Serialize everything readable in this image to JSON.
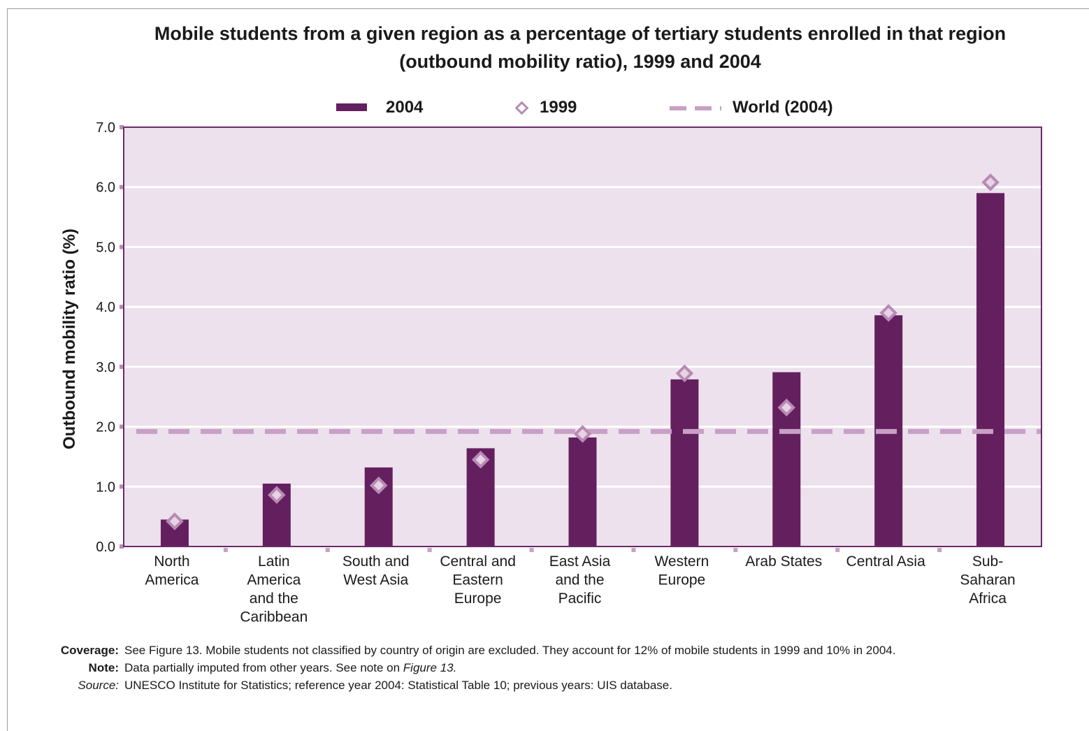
{
  "title_line1": "Mobile students from a given region as a percentage of tertiary students enrolled in that region",
  "title_line2": "(outbound mobility ratio), 1999 and 2004",
  "chart_data": {
    "type": "bar",
    "title": "Mobile students from a given region as a percentage of tertiary students enrolled in that region (outbound mobility ratio), 1999 and 2004",
    "xlabel": "",
    "ylabel": "Outbound mobility ratio (%)",
    "ylim": [
      0,
      7
    ],
    "yticks": [
      "0.0",
      "1.0",
      "2.0",
      "3.0",
      "4.0",
      "5.0",
      "6.0",
      "7.0"
    ],
    "categories": [
      [
        "North",
        "America"
      ],
      [
        "Latin",
        "America",
        "and the",
        "Caribbean"
      ],
      [
        "South and",
        "West Asia"
      ],
      [
        "Central and",
        "Eastern",
        "Europe"
      ],
      [
        "East Asia",
        "and the",
        "Pacific"
      ],
      [
        "Western",
        "Europe"
      ],
      [
        "Arab States"
      ],
      [
        "Central Asia"
      ],
      [
        "Sub-",
        "Saharan",
        "Africa"
      ]
    ],
    "series": [
      {
        "name": "2004",
        "kind": "bar",
        "color": "#64205e",
        "values": [
          0.45,
          1.05,
          1.32,
          1.64,
          1.82,
          2.79,
          2.91,
          3.86,
          5.9
        ]
      },
      {
        "name": "1999",
        "kind": "marker",
        "color": "#b98ab6",
        "values": [
          0.42,
          0.86,
          1.02,
          1.45,
          1.88,
          2.89,
          2.32,
          3.9,
          6.08
        ]
      },
      {
        "name": "World (2004)",
        "kind": "reference-line",
        "color": "#c8a0c5",
        "value": 1.92
      }
    ],
    "grid": true,
    "legend_position": "top-center",
    "plot_background": "#ece1ec",
    "border_color": "#6a2a66"
  },
  "legend": {
    "item_2004": "2004",
    "item_1999": "1999",
    "item_world": "World (2004)"
  },
  "notes": {
    "coverage_label": "Coverage:",
    "coverage_text": "See Figure 13. Mobile students not classified by country of origin are excluded. They account for 12% of mobile students in 1999 and 10% in 2004.",
    "note_label": "Note:",
    "note_text": "Data partially imputed from other years. See note on",
    "note_ref": "Figure 13.",
    "source_label": "Source:",
    "source_text": "UNESCO Institute for Statistics; reference year 2004: Statistical Table 10; previous years: UIS database."
  }
}
